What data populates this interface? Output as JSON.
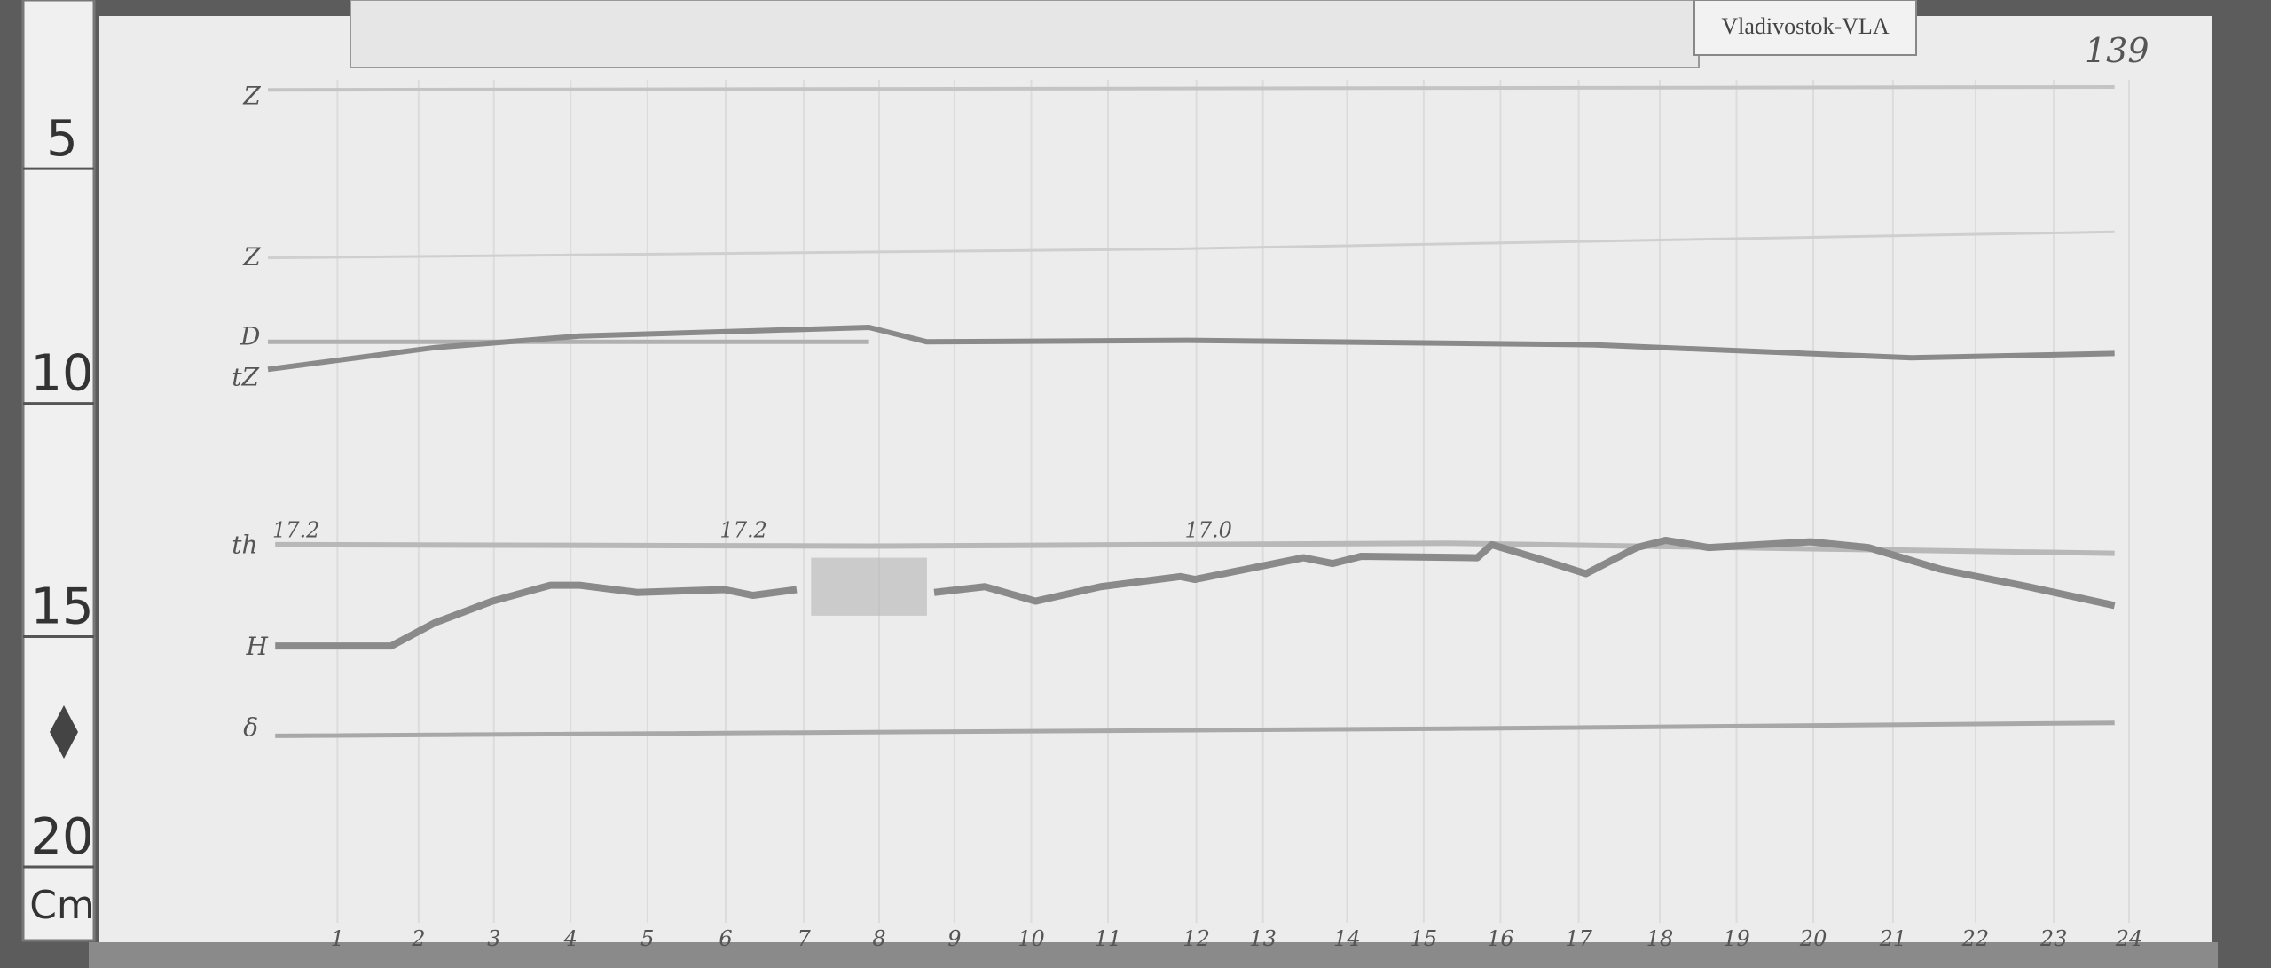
{
  "station_label": "Vladivostok-VLA",
  "sheet_number": "139",
  "ruler": {
    "marks": [
      "5",
      "10",
      "15",
      "20"
    ],
    "unit": "Cm"
  },
  "trace_labels": [
    "Z",
    "Z",
    "D",
    "tZ",
    "th",
    "H",
    "δ"
  ],
  "annotations": [
    "17.2",
    "17.2",
    "17.0"
  ],
  "hour_ticks": [
    "1",
    "2",
    "3",
    "4",
    "5",
    "6",
    "7",
    "8",
    "9",
    "10",
    "11",
    "12",
    "13",
    "14",
    "15",
    "16",
    "17",
    "18",
    "19",
    "20",
    "21",
    "22",
    "23",
    "24"
  ],
  "colors": {
    "paper": "#ececec",
    "trace": "#8a8a8a",
    "background": "#5a5a5a"
  }
}
